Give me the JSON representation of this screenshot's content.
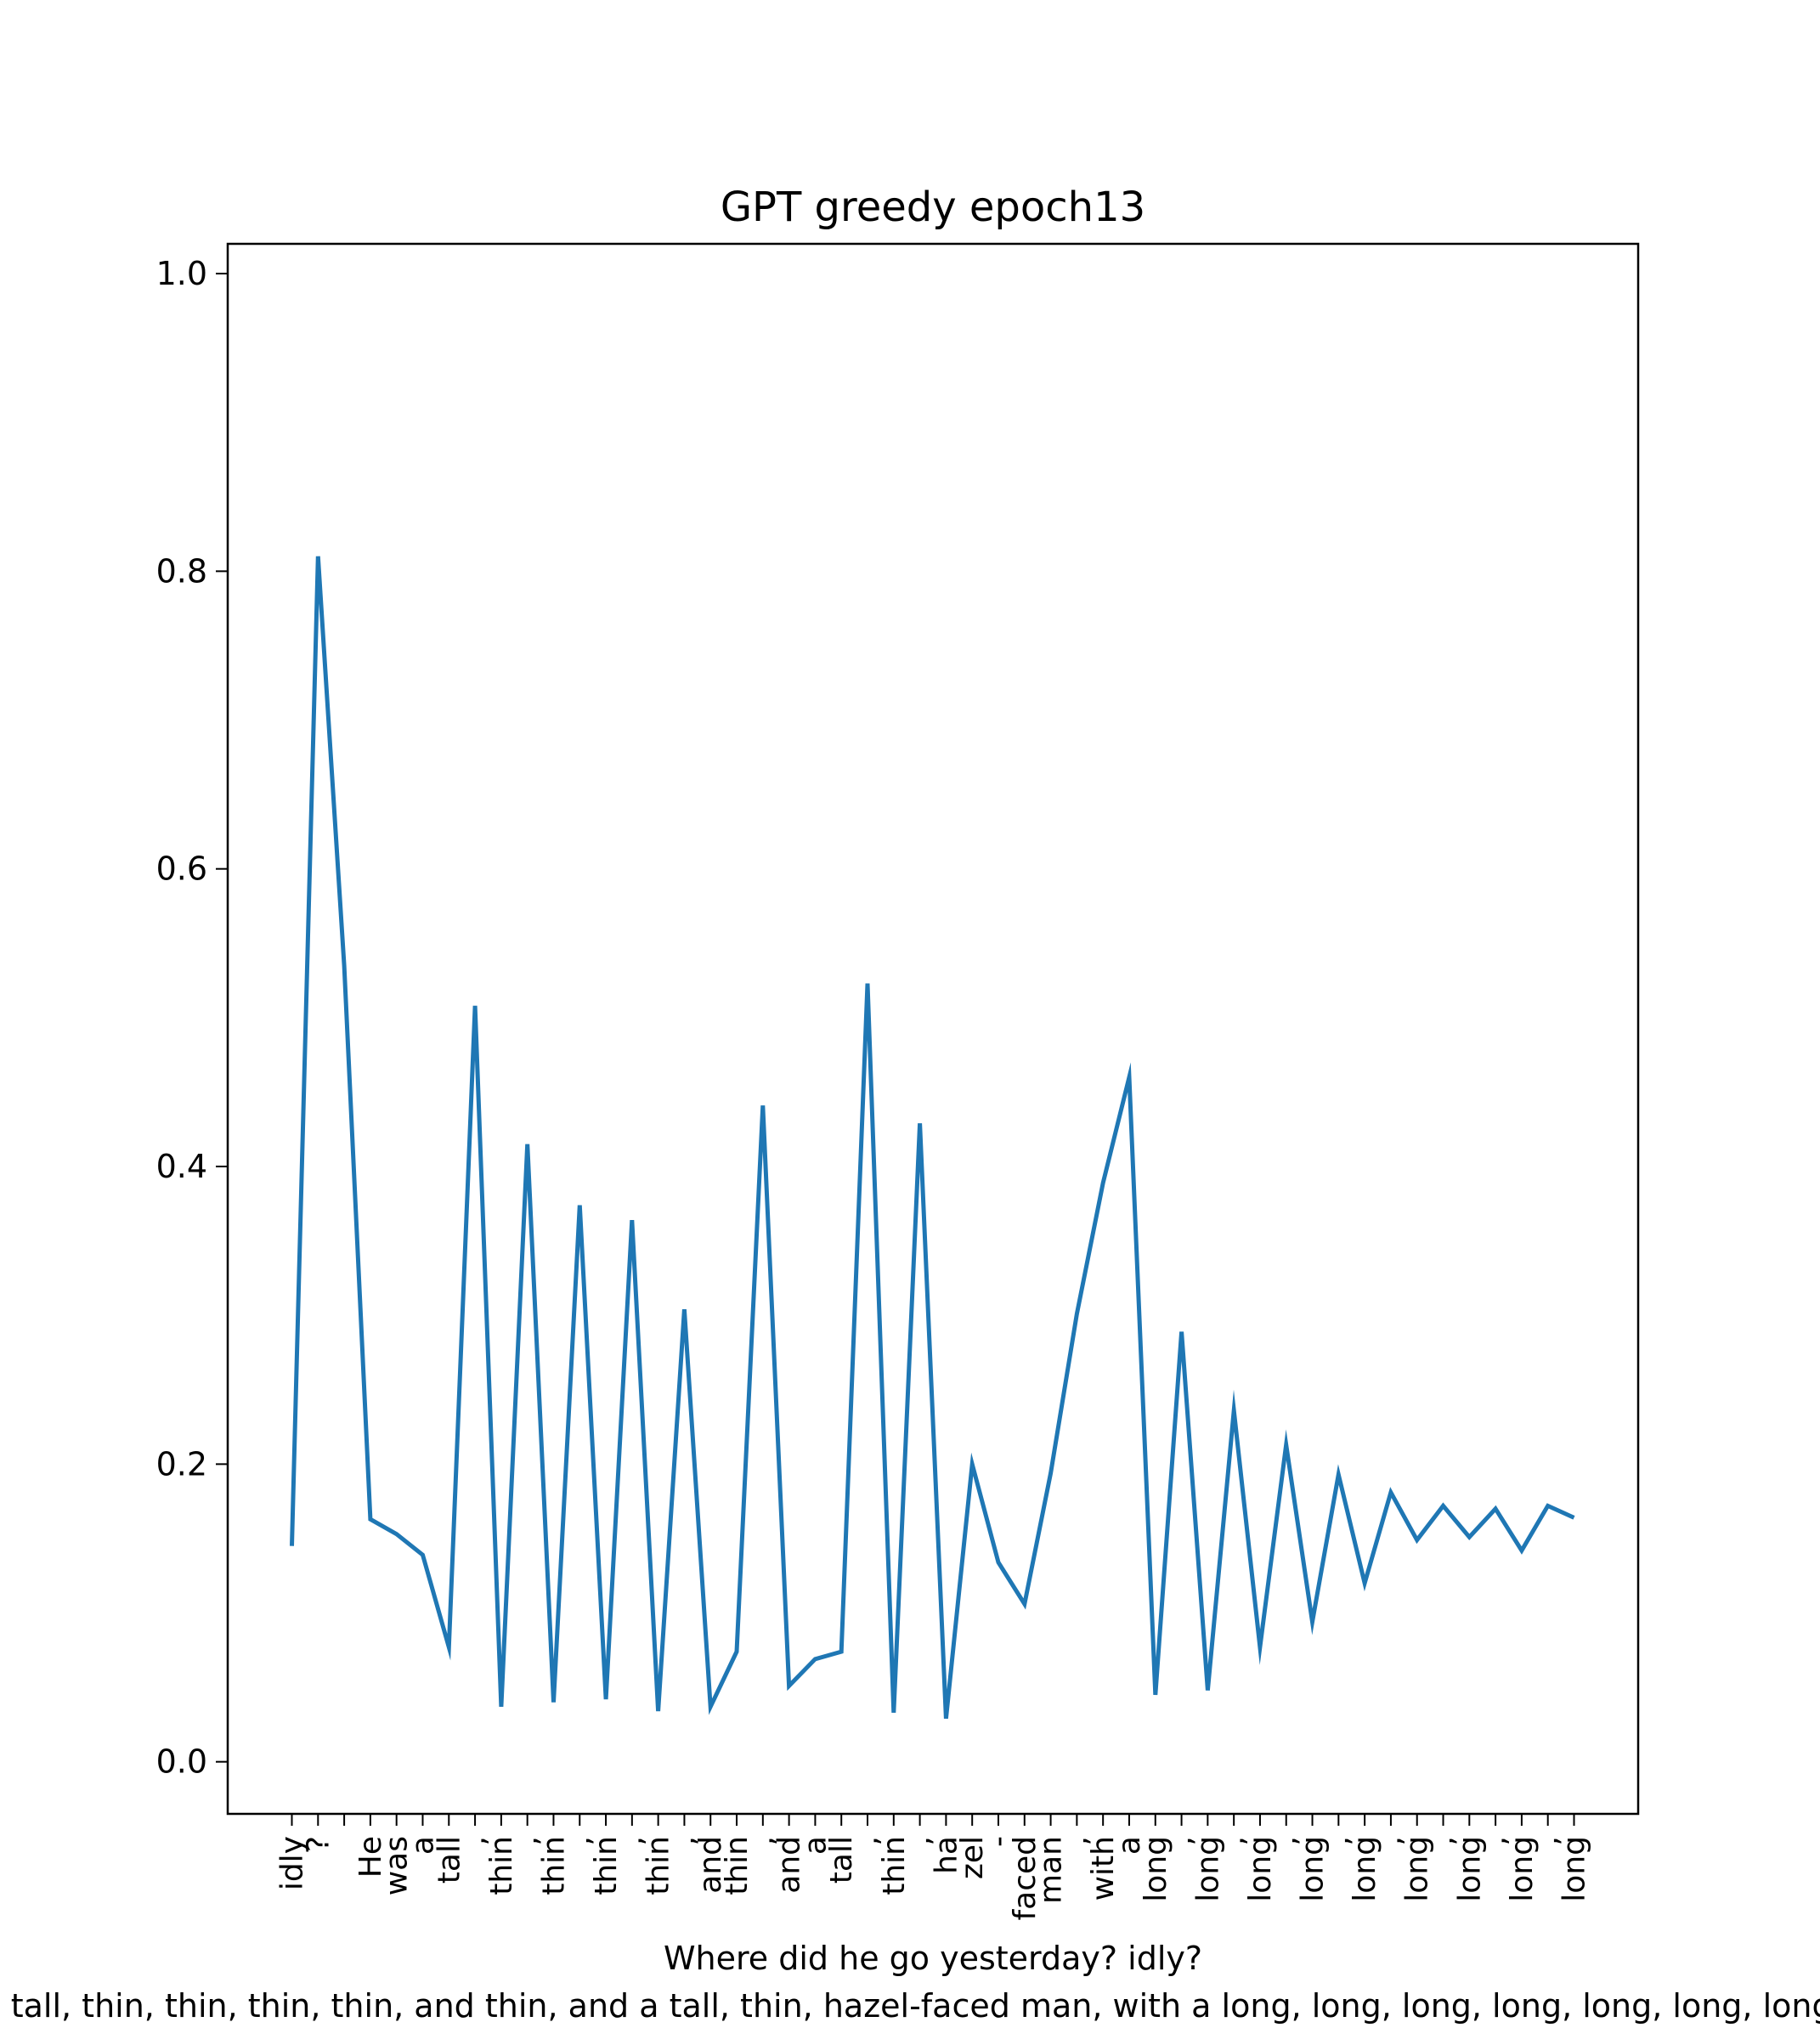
{
  "chart_data": {
    "type": "line",
    "title": "GPT greedy epoch13",
    "xlabel_lines": [
      "Where did he go yesterday? idly?",
      "He was a tall, thin, thin, thin, thin, and thin, and a tall, thin, hazel-faced man, with a long, long, long, long, long, long, long, long, long"
    ],
    "ylabel": "",
    "ylim": [
      -0.035,
      1.02
    ],
    "y_ticks": [
      0.0,
      0.2,
      0.4,
      0.6,
      0.8,
      1.0
    ],
    "y_tick_labels": [
      "0.0",
      "0.2",
      "0.4",
      "0.6",
      "0.8",
      "1.0"
    ],
    "grid": false,
    "categories": [
      "idly",
      "?",
      "\n",
      "He",
      "was",
      "a",
      "tall",
      ",",
      "thin",
      ",",
      "thin",
      ",",
      "thin",
      ",",
      "thin",
      ",",
      "and",
      "thin",
      ",",
      "and",
      "a",
      "tall",
      ",",
      "thin",
      ",",
      "ha",
      "zel",
      "-",
      "faced",
      "man",
      ",",
      "with",
      "a",
      "long",
      ",",
      "long",
      ",",
      "long",
      ",",
      "long",
      ",",
      "long",
      ",",
      "long",
      ",",
      "long",
      ",",
      "long",
      ",",
      "long"
    ],
    "series": [
      {
        "color": "#1f77b4",
        "values": [
          0.145,
          0.81,
          0.535,
          0.163,
          0.153,
          0.139,
          0.077,
          0.508,
          0.037,
          0.415,
          0.04,
          0.374,
          0.042,
          0.364,
          0.034,
          0.304,
          0.037,
          0.074,
          0.441,
          0.051,
          0.069,
          0.074,
          0.523,
          0.033,
          0.429,
          0.029,
          0.2,
          0.134,
          0.106,
          0.194,
          0.301,
          0.389,
          0.46,
          0.045,
          0.289,
          0.048,
          0.236,
          0.077,
          0.213,
          0.094,
          0.193,
          0.12,
          0.181,
          0.149,
          0.172,
          0.151,
          0.17,
          0.142,
          0.172,
          0.164
        ]
      }
    ]
  }
}
